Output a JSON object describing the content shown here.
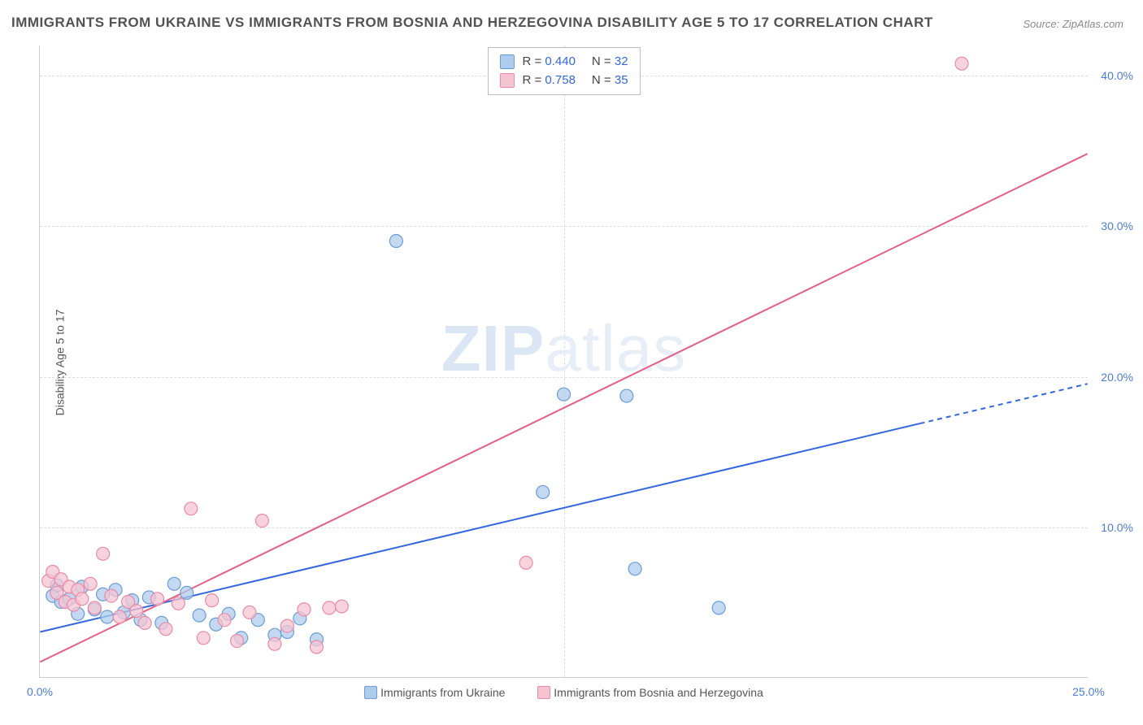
{
  "title": "IMMIGRANTS FROM UKRAINE VS IMMIGRANTS FROM BOSNIA AND HERZEGOVINA DISABILITY AGE 5 TO 17 CORRELATION CHART",
  "source_label": "Source: ZipAtlas.com",
  "ylabel": "Disability Age 5 to 17",
  "watermark": {
    "bold": "ZIP",
    "rest": "atlas"
  },
  "plot": {
    "type": "scatter",
    "x_range": [
      0,
      25
    ],
    "y_range": [
      0,
      42
    ],
    "x_ticks": [
      0,
      25
    ],
    "x_tick_labels": [
      "0.0%",
      "25.0%"
    ],
    "y_ticks": [
      10,
      20,
      30,
      40
    ],
    "y_tick_labels": [
      "10.0%",
      "20.0%",
      "30.0%",
      "40.0%"
    ],
    "grid_color": "#dddddd",
    "gridlines_h": [
      10,
      20,
      30,
      40
    ],
    "gridlines_v": [
      12.5
    ],
    "background_color": "#ffffff",
    "axis_color": "#cccccc",
    "tick_color": "#4b7bd6",
    "tick_fontsize": 14,
    "marker_radius": 8,
    "marker_stroke_width": 1.2,
    "line_width": 2,
    "series": [
      {
        "name": "Immigrants from Ukraine",
        "color_fill": "#aeccec",
        "color_stroke": "#6b9bd6",
        "line_color": "#3366dd",
        "R": "0.440",
        "N": "32",
        "trend": {
          "x1": 0,
          "y1": 3.0,
          "x2": 25,
          "y2": 19.5,
          "solid_until_x": 21.0
        },
        "points": [
          [
            0.3,
            5.4
          ],
          [
            0.4,
            6.1
          ],
          [
            0.5,
            5.0
          ],
          [
            0.7,
            5.2
          ],
          [
            0.9,
            4.2
          ],
          [
            1.0,
            6.0
          ],
          [
            1.3,
            4.5
          ],
          [
            1.5,
            5.5
          ],
          [
            1.6,
            4.0
          ],
          [
            1.8,
            5.8
          ],
          [
            2.0,
            4.3
          ],
          [
            2.2,
            5.1
          ],
          [
            2.4,
            3.8
          ],
          [
            2.6,
            5.3
          ],
          [
            2.9,
            3.6
          ],
          [
            3.2,
            6.2
          ],
          [
            3.5,
            5.6
          ],
          [
            3.8,
            4.1
          ],
          [
            4.2,
            3.5
          ],
          [
            4.5,
            4.2
          ],
          [
            4.8,
            2.6
          ],
          [
            5.2,
            3.8
          ],
          [
            5.6,
            2.8
          ],
          [
            5.9,
            3.0
          ],
          [
            6.2,
            3.9
          ],
          [
            6.6,
            2.5
          ],
          [
            8.5,
            29.0
          ],
          [
            12.0,
            12.3
          ],
          [
            12.5,
            18.8
          ],
          [
            14.0,
            18.7
          ],
          [
            14.2,
            7.2
          ],
          [
            16.2,
            4.6
          ]
        ]
      },
      {
        "name": "Immigrants from Bosnia and Herzegovina",
        "color_fill": "#f6c4d1",
        "color_stroke": "#e98aa7",
        "line_color": "#e45f85",
        "R": "0.758",
        "N": "35",
        "trend": {
          "x1": 0,
          "y1": 1.0,
          "x2": 25,
          "y2": 34.8,
          "solid_until_x": 25
        },
        "points": [
          [
            0.2,
            6.4
          ],
          [
            0.3,
            7.0
          ],
          [
            0.4,
            5.6
          ],
          [
            0.5,
            6.5
          ],
          [
            0.6,
            5.0
          ],
          [
            0.7,
            6.0
          ],
          [
            0.8,
            4.8
          ],
          [
            0.9,
            5.8
          ],
          [
            1.0,
            5.2
          ],
          [
            1.2,
            6.2
          ],
          [
            1.3,
            4.6
          ],
          [
            1.5,
            8.2
          ],
          [
            1.7,
            5.4
          ],
          [
            1.9,
            4.0
          ],
          [
            2.1,
            5.0
          ],
          [
            2.3,
            4.4
          ],
          [
            2.5,
            3.6
          ],
          [
            2.8,
            5.2
          ],
          [
            3.0,
            3.2
          ],
          [
            3.3,
            4.9
          ],
          [
            3.6,
            11.2
          ],
          [
            3.9,
            2.6
          ],
          [
            4.1,
            5.1
          ],
          [
            4.4,
            3.8
          ],
          [
            4.7,
            2.4
          ],
          [
            5.0,
            4.3
          ],
          [
            5.3,
            10.4
          ],
          [
            5.6,
            2.2
          ],
          [
            5.9,
            3.4
          ],
          [
            6.3,
            4.5
          ],
          [
            6.6,
            2.0
          ],
          [
            6.9,
            4.6
          ],
          [
            7.2,
            4.7
          ],
          [
            11.6,
            7.6
          ],
          [
            22.0,
            40.8
          ]
        ]
      }
    ],
    "legend_bottom": [
      {
        "label": "Immigrants from Ukraine",
        "fill": "#aeccec",
        "stroke": "#6b9bd6"
      },
      {
        "label": "Immigrants from Bosnia and Herzegovina",
        "fill": "#f6c4d1",
        "stroke": "#e98aa7"
      }
    ]
  }
}
